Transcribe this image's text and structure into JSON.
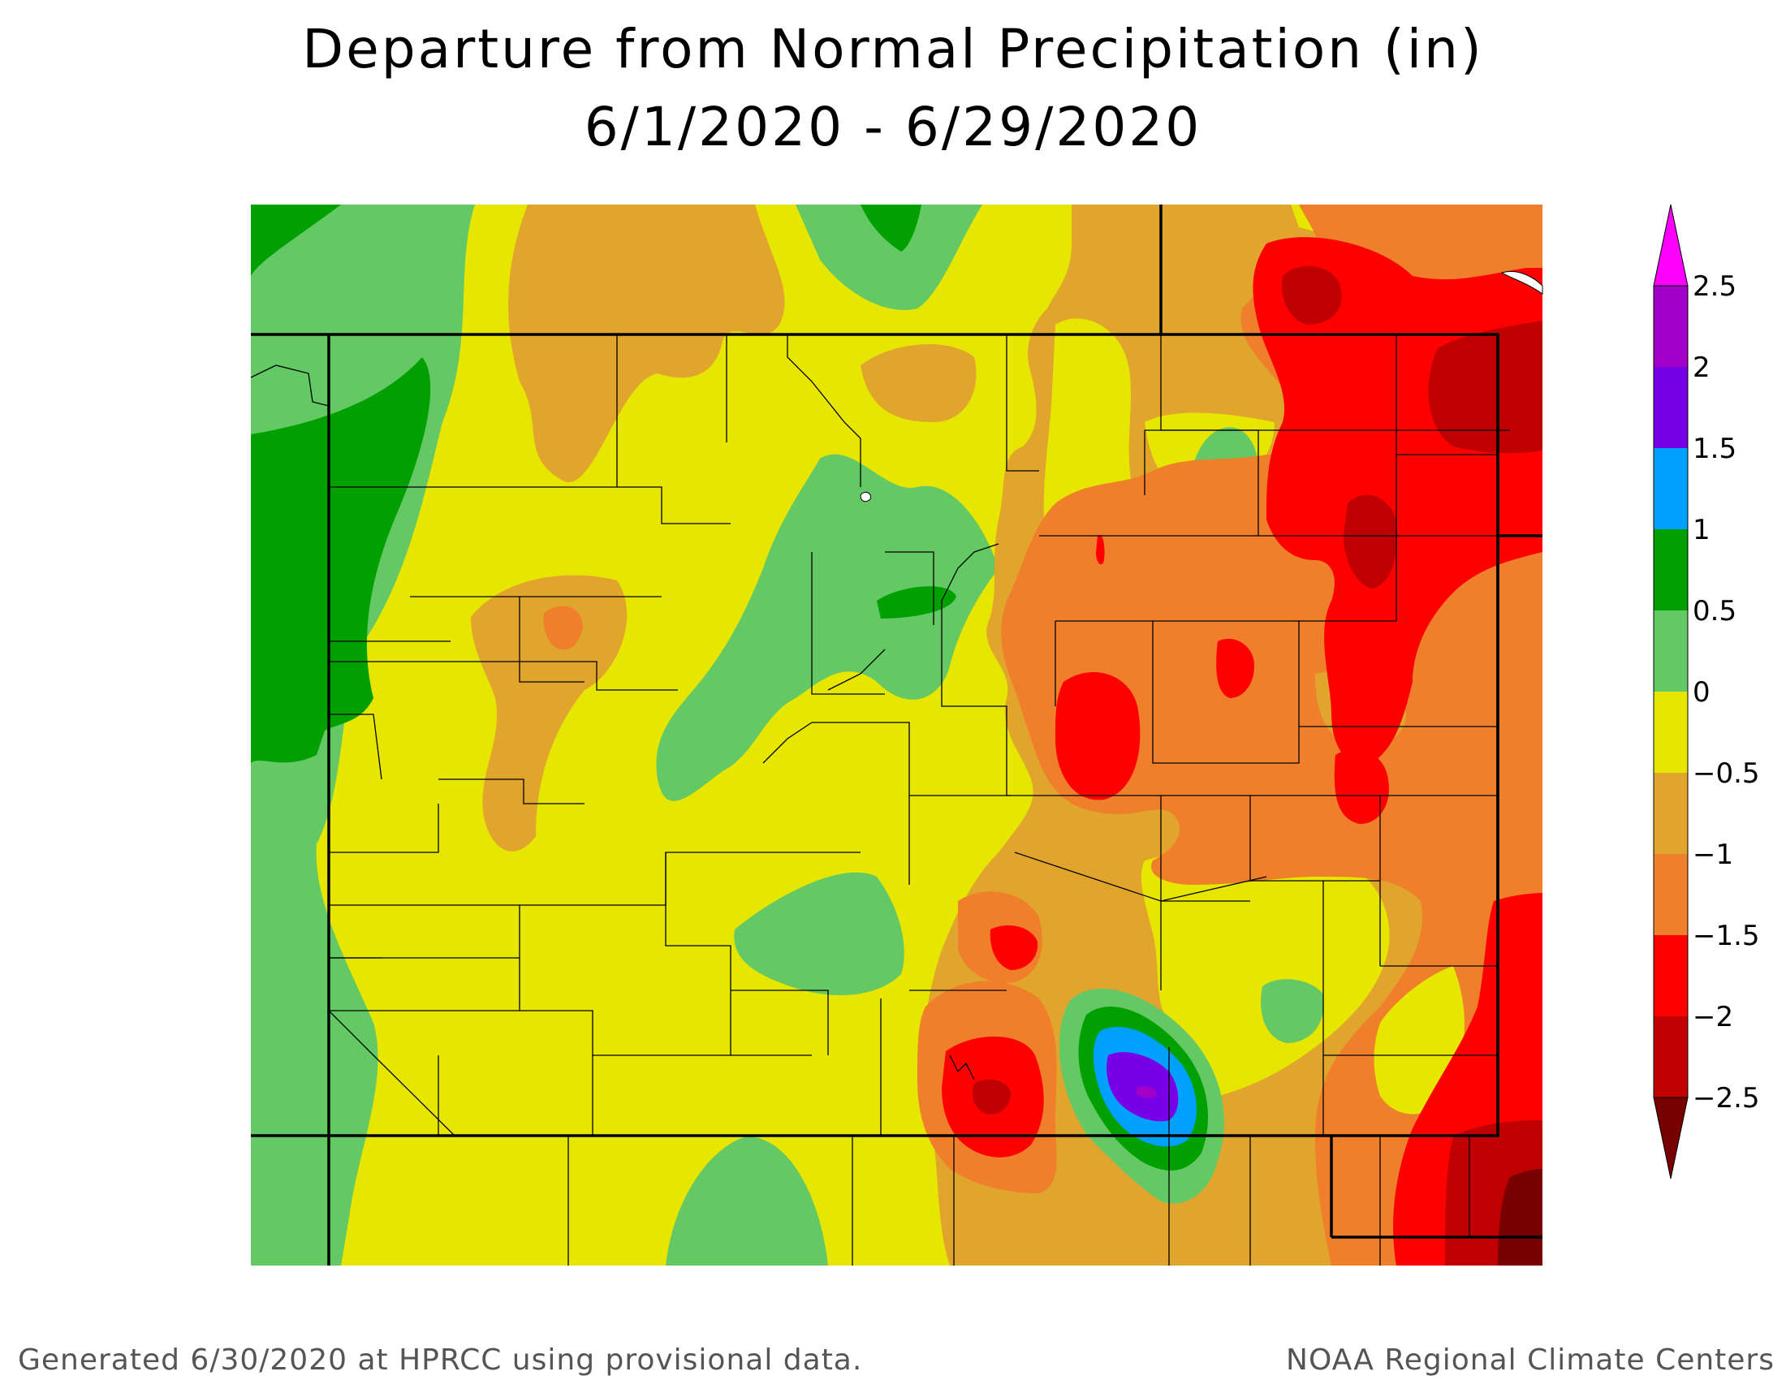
{
  "title": "Departure from Normal Precipitation (in)",
  "subtitle": "6/1/2020 - 6/29/2020",
  "footer_left": "Generated 6/30/2020 at HPRCC using provisional data.",
  "footer_right": "NOAA Regional Climate Centers",
  "legend": {
    "ticks": [
      "2.5",
      "2",
      "1.5",
      "1",
      "0.5",
      "0",
      "−0.5",
      "−1",
      "−1.5",
      "−2",
      "−2.5"
    ],
    "bins": [
      {
        "range": "> 2.5",
        "color": "#ff00ff"
      },
      {
        "range": "2 to 2.5",
        "color": "#a000c8"
      },
      {
        "range": "1.5 to 2",
        "color": "#7800e6"
      },
      {
        "range": "1 to 1.5",
        "color": "#00a0ff"
      },
      {
        "range": "0.5 to 1",
        "color": "#00a000"
      },
      {
        "range": "0 to 0.5",
        "color": "#64c864"
      },
      {
        "range": "-0.5 to 0",
        "color": "#e6e600"
      },
      {
        "range": "-1 to -0.5",
        "color": "#e1a52d"
      },
      {
        "range": "-1.5 to -1",
        "color": "#ef7f2a"
      },
      {
        "range": "-2 to -1.5",
        "color": "#ff0000"
      },
      {
        "range": "-2.5 to -2",
        "color": "#c00000"
      },
      {
        "range": "< -2.5",
        "color": "#780000"
      }
    ]
  },
  "map": {
    "region": "Colorado",
    "units": "in",
    "background_color": "#e6e600",
    "boundary_color": "#000000"
  }
}
